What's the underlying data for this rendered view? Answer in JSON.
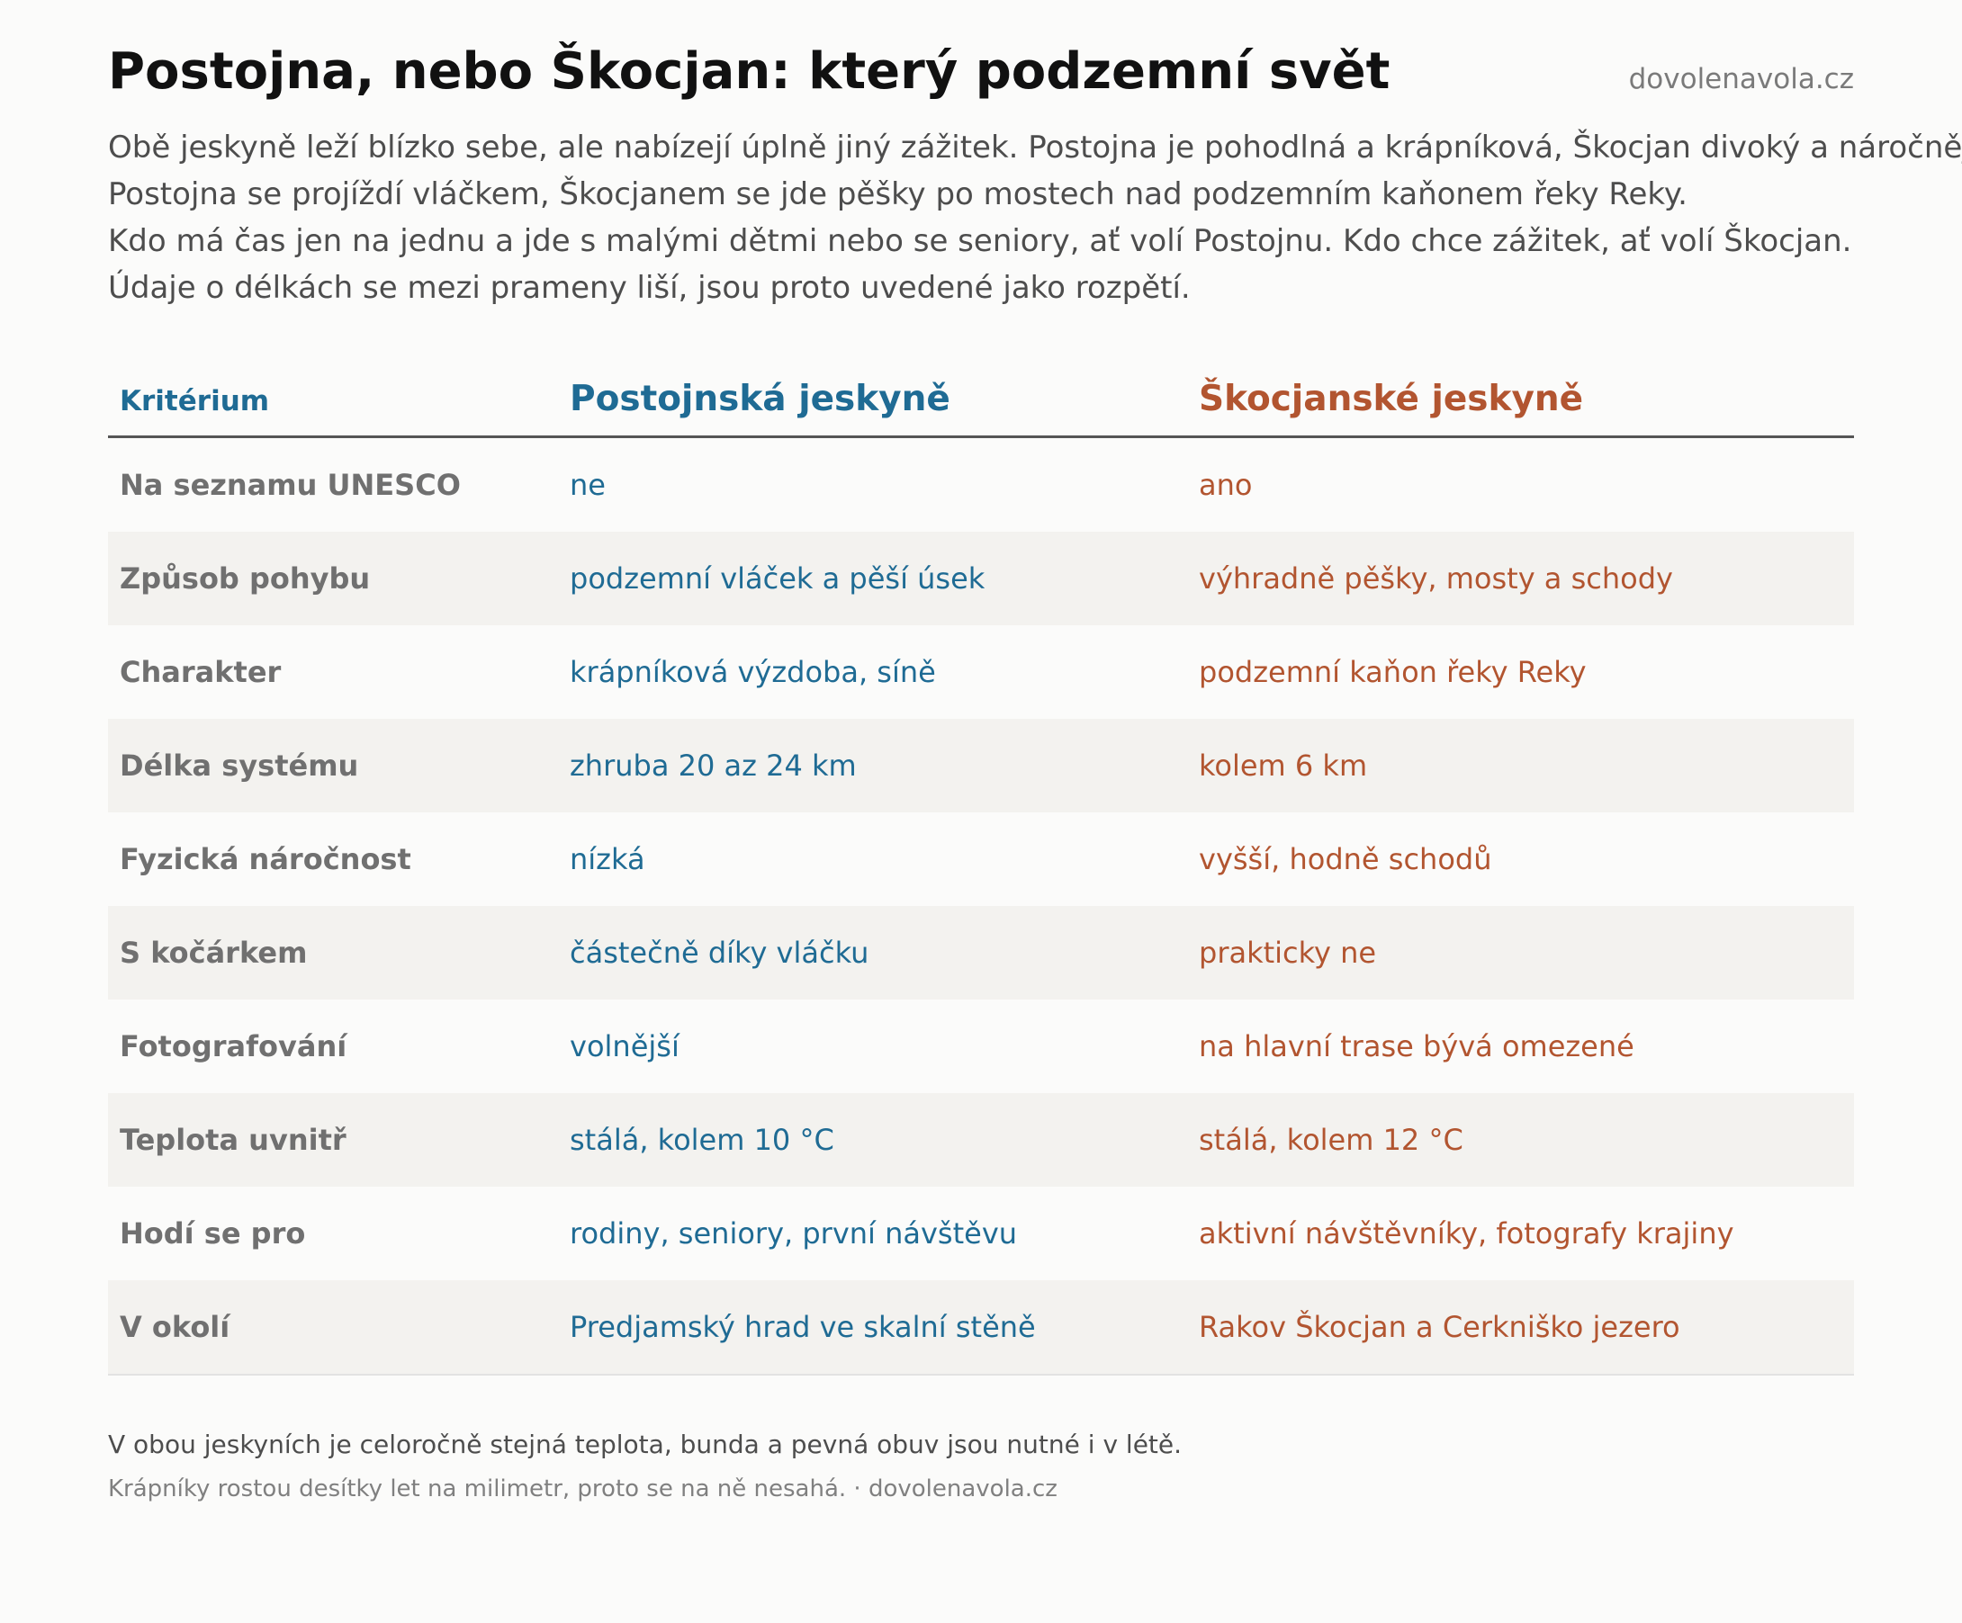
{
  "header": {
    "title": "Postojna, nebo Škocjan: který podzemní svět",
    "site": "dovolenavola.cz"
  },
  "intro": {
    "lines": [
      "Obě jeskyně leží blízko sebe, ale nabízejí úplně jiný zážitek. Postojna je pohodlná a krápníková, Škocjan divoký a náročnější.",
      "Postojna se projíždí vláčkem, Škocjanem se jde pěšky po mostech nad podzemním kaňonem řeky Reky.",
      "Kdo má čas jen na jednu a jde s malými dětmi nebo se seniory, ať volí Postojnu. Kdo chce zážitek, ať volí Škocjan.",
      "Údaje o délkách se mezi prameny liší, jsou proto uvedené jako rozpětí."
    ]
  },
  "table": {
    "headers": {
      "criterion": "Kritérium",
      "postojna": "Postojnská jeskyně",
      "skocjan": "Škocjanské jeskyně"
    },
    "rows": [
      {
        "criterion": "Na seznamu UNESCO",
        "postojna": "ne",
        "skocjan": "ano"
      },
      {
        "criterion": "Způsob pohybu",
        "postojna": "podzemní vláček a pěší úsek",
        "skocjan": "výhradně pěšky, mosty a schody"
      },
      {
        "criterion": "Charakter",
        "postojna": "krápníková výzdoba, síně",
        "skocjan": "podzemní kaňon řeky Reky"
      },
      {
        "criterion": "Délka systému",
        "postojna": "zhruba 20 az 24 km",
        "skocjan": "kolem 6 km"
      },
      {
        "criterion": "Fyzická náročnost",
        "postojna": "nízká",
        "skocjan": "vyšší, hodně schodů"
      },
      {
        "criterion": "S kočárkem",
        "postojna": "částečně díky vláčku",
        "skocjan": "prakticky ne"
      },
      {
        "criterion": "Fotografování",
        "postojna": "volnější",
        "skocjan": "na hlavní trase bývá omezené"
      },
      {
        "criterion": "Teplota uvnitř",
        "postojna": "stálá, kolem 10 °C",
        "skocjan": "stálá, kolem 12 °C"
      },
      {
        "criterion": "Hodí se pro",
        "postojna": "rodiny, seniory, první návštěvu",
        "skocjan": "aktivní návštěvníky, fotografy krajiny"
      },
      {
        "criterion": "V okolí",
        "postojna": "Predjamský hrad ve skalní stěně",
        "skocjan": "Rakov Škocjan a Cerkniško jezero"
      }
    ]
  },
  "footer": {
    "note": "V obou jeskyních je celoročně stejná teplota, bunda a pevná obuv jsou nutné i v létě.",
    "credit": "Krápníky rostou desítky let na milimetr, proto se na ně nesahá. · dovolenavola.cz"
  },
  "colors": {
    "postojna": "#1f6b94",
    "skocjan": "#b25530",
    "criterion": "#707070",
    "row_alt": "#f3f2ef"
  }
}
